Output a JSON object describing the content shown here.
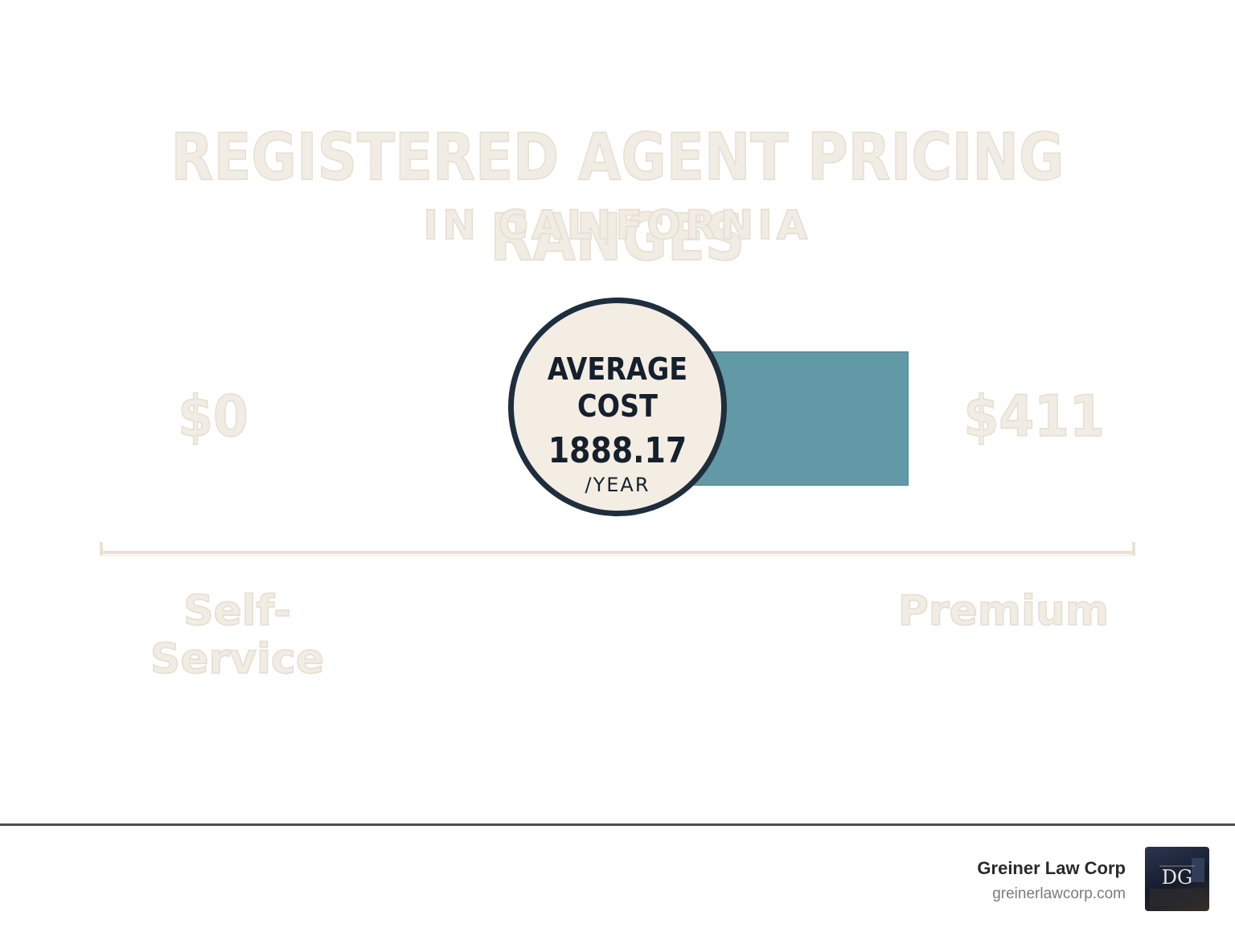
{
  "header": {
    "title": "REGISTERED AGENT PRICING RANGES",
    "subtitle": "IN CALIFORNIA"
  },
  "range": {
    "min_label": "$0",
    "max_label": "$411",
    "low_tier": "Self-Service",
    "high_tier": "Premium"
  },
  "average_badge": {
    "line1": "AVERAGE",
    "line2": "COST",
    "amount": "1888.17",
    "unit": "/YEAR"
  },
  "footer": {
    "company": "Greiner Law Corp",
    "website": "greinerlawcorp.com",
    "logo_text": "DG"
  },
  "colors": {
    "bar": "#6199a6",
    "badge_fill": "#f3ede3",
    "badge_border": "#1e2e3e",
    "faint_text": "#f1ece4",
    "footer_rule": "#4b4f5c"
  }
}
